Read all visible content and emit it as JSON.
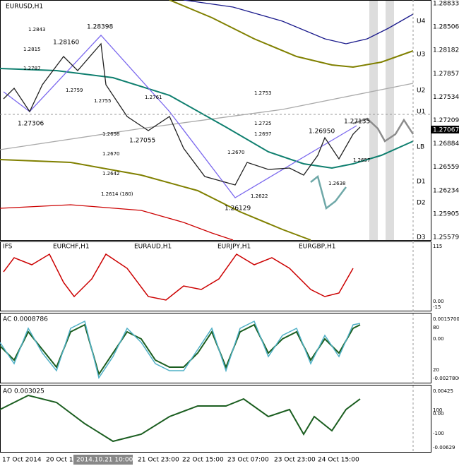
{
  "window": {
    "title": "EURUSD,H1"
  },
  "price_axis": {
    "labels": [
      "1.28833",
      "1.28506",
      "1.28182",
      "1.27857",
      "1.27534",
      "1.27209",
      "1.26884",
      "1.26559",
      "1.26234",
      "1.25905",
      "1.25579"
    ],
    "current": "1.27067"
  },
  "levels": [
    "U4",
    "U3",
    "U2",
    "U1",
    "LB",
    "D1",
    "D2",
    "D3"
  ],
  "annotations": [
    "1.2843",
    "1.28398",
    "1.28160",
    "1.2815",
    "1.2787",
    "1.2759",
    "1.2755",
    "1.2761",
    "1.27306",
    "1.2698",
    "1.27055",
    "1.2670",
    "1.2642",
    "1.2614 (180)",
    "1.2753",
    "1.2725",
    "1.2697",
    "1.2670",
    "1.2622",
    "1.26129",
    "1.26950",
    "1.27135",
    "1.2657",
    "1.2638"
  ],
  "ifs_panel": {
    "title": "IFS",
    "pairs": [
      "EURCHF,H1",
      "EURAUD,H1",
      "EURJPY,H1",
      "EURGBP,H1"
    ],
    "axis": [
      "115",
      "0.00",
      "-15"
    ]
  },
  "ac_panel": {
    "title": "AC 0.0008786",
    "axis": [
      "0.0015700",
      "80",
      "0.00",
      "20",
      "-0.0027800"
    ]
  },
  "ao_panel": {
    "title": "AO 0.003025",
    "axis": [
      "0.00425",
      "100",
      "0.00",
      "-100",
      "-0.00629"
    ]
  },
  "time_axis": [
    "17 Oct 2014",
    "20 Oct 1",
    "2014.10.21 10:00",
    "21 Oct 23:00",
    "22 Oct 15:00",
    "23 Oct 07:00",
    "23 Oct 23:00",
    "24 Oct 15:00"
  ]
}
